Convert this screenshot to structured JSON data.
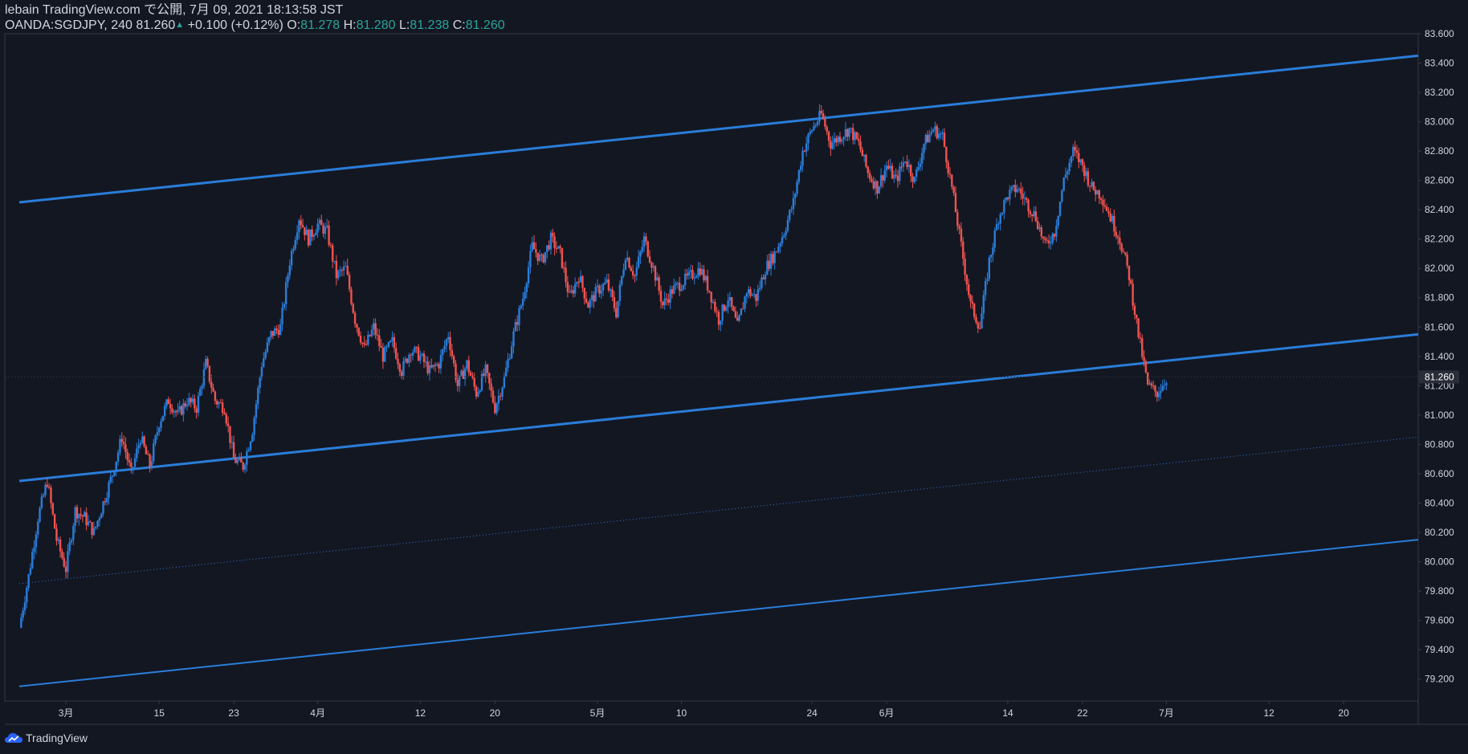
{
  "header": {
    "publish_line": "lebain TradingView.com で公開, 7月 09, 2021 18:13:58 JST",
    "symbol_info": "OANDA:SGDJPY, 240",
    "last": "81.260",
    "change": "+0.100 (+0.12%)",
    "o_label": "O:",
    "o_value": "81.278",
    "h_label": "H:",
    "h_value": "81.280",
    "l_label": "L:",
    "l_value": "81.238",
    "c_label": "C:",
    "c_value": "81.260"
  },
  "footer": {
    "brand": "TradingView"
  },
  "colors": {
    "background": "#131722",
    "bull": "#2a7dd9",
    "bear": "#ef5350",
    "channel": "#2a7dd9",
    "axis_text": "#d1d4dc",
    "price_tag_bg": "#2a2e39"
  },
  "icons": {
    "brand_logo": "tradingview-cloud-icon"
  },
  "chart_data": {
    "type": "candlestick",
    "symbol": "OANDA:SGDJPY",
    "interval": "240",
    "ylim": [
      79.05,
      83.6
    ],
    "y_ticks": [
      "83.600",
      "83.400",
      "83.200",
      "83.000",
      "82.800",
      "82.600",
      "82.400",
      "82.200",
      "82.000",
      "81.800",
      "81.600",
      "81.400",
      "81.200",
      "81.000",
      "80.800",
      "80.600",
      "80.400",
      "80.200",
      "80.000",
      "79.800",
      "79.600",
      "79.400",
      "79.200"
    ],
    "current_price": "81.260",
    "x_ticks": [
      {
        "label": "3月",
        "day": 5
      },
      {
        "label": "15",
        "day": 15
      },
      {
        "label": "23",
        "day": 23
      },
      {
        "label": "4月",
        "day": 32
      },
      {
        "label": "12",
        "day": 43
      },
      {
        "label": "20",
        "day": 51
      },
      {
        "label": "5月",
        "day": 62
      },
      {
        "label": "10",
        "day": 71
      },
      {
        "label": "24",
        "day": 85
      },
      {
        "label": "6月",
        "day": 93
      },
      {
        "label": "14",
        "day": 106
      },
      {
        "label": "22",
        "day": 114
      },
      {
        "label": "7月",
        "day": 123
      },
      {
        "label": "12",
        "day": 134
      },
      {
        "label": "20",
        "day": 142
      }
    ],
    "x_range_days": [
      0,
      150
    ],
    "price_path": [
      [
        0,
        79.55
      ],
      [
        1,
        79.9
      ],
      [
        2,
        80.3
      ],
      [
        3,
        80.55
      ],
      [
        4,
        80.15
      ],
      [
        5,
        79.95
      ],
      [
        6,
        80.35
      ],
      [
        7,
        80.3
      ],
      [
        8,
        80.2
      ],
      [
        9,
        80.4
      ],
      [
        10,
        80.6
      ],
      [
        11,
        80.85
      ],
      [
        12,
        80.6
      ],
      [
        13,
        80.85
      ],
      [
        14,
        80.65
      ],
      [
        15,
        80.95
      ],
      [
        16,
        81.1
      ],
      [
        17,
        81.0
      ],
      [
        18,
        81.1
      ],
      [
        19,
        81.05
      ],
      [
        20,
        81.35
      ],
      [
        21,
        81.1
      ],
      [
        22,
        81.05
      ],
      [
        23,
        80.7
      ],
      [
        24,
        80.65
      ],
      [
        25,
        80.9
      ],
      [
        26,
        81.35
      ],
      [
        27,
        81.55
      ],
      [
        28,
        81.6
      ],
      [
        29,
        82.05
      ],
      [
        30,
        82.35
      ],
      [
        31,
        82.2
      ],
      [
        32,
        82.3
      ],
      [
        33,
        82.25
      ],
      [
        34,
        81.95
      ],
      [
        35,
        82.0
      ],
      [
        36,
        81.65
      ],
      [
        37,
        81.45
      ],
      [
        38,
        81.6
      ],
      [
        39,
        81.4
      ],
      [
        40,
        81.5
      ],
      [
        41,
        81.3
      ],
      [
        42,
        81.45
      ],
      [
        43,
        81.4
      ],
      [
        44,
        81.3
      ],
      [
        45,
        81.35
      ],
      [
        46,
        81.55
      ],
      [
        47,
        81.2
      ],
      [
        48,
        81.35
      ],
      [
        49,
        81.15
      ],
      [
        50,
        81.3
      ],
      [
        51,
        81.05
      ],
      [
        52,
        81.25
      ],
      [
        53,
        81.55
      ],
      [
        54,
        81.8
      ],
      [
        55,
        82.15
      ],
      [
        56,
        82.05
      ],
      [
        57,
        82.2
      ],
      [
        58,
        82.1
      ],
      [
        59,
        81.8
      ],
      [
        60,
        81.95
      ],
      [
        61,
        81.75
      ],
      [
        62,
        81.85
      ],
      [
        63,
        81.9
      ],
      [
        64,
        81.7
      ],
      [
        65,
        82.1
      ],
      [
        66,
        81.95
      ],
      [
        67,
        82.2
      ],
      [
        68,
        82.0
      ],
      [
        69,
        81.75
      ],
      [
        70,
        81.85
      ],
      [
        71,
        81.9
      ],
      [
        72,
        81.95
      ],
      [
        73,
        82.0
      ],
      [
        74,
        81.85
      ],
      [
        75,
        81.65
      ],
      [
        76,
        81.8
      ],
      [
        77,
        81.6
      ],
      [
        78,
        81.85
      ],
      [
        79,
        81.8
      ],
      [
        80,
        82.0
      ],
      [
        81,
        82.1
      ],
      [
        82,
        82.25
      ],
      [
        83,
        82.45
      ],
      [
        84,
        82.8
      ],
      [
        85,
        82.95
      ],
      [
        86,
        83.05
      ],
      [
        87,
        82.85
      ],
      [
        88,
        82.9
      ],
      [
        89,
        82.95
      ],
      [
        90,
        82.85
      ],
      [
        91,
        82.65
      ],
      [
        92,
        82.55
      ],
      [
        93,
        82.7
      ],
      [
        94,
        82.6
      ],
      [
        95,
        82.75
      ],
      [
        96,
        82.6
      ],
      [
        97,
        82.85
      ],
      [
        98,
        82.95
      ],
      [
        99,
        82.9
      ],
      [
        100,
        82.55
      ],
      [
        101,
        82.15
      ],
      [
        102,
        81.75
      ],
      [
        103,
        81.6
      ],
      [
        104,
        82.05
      ],
      [
        105,
        82.35
      ],
      [
        106,
        82.5
      ],
      [
        107,
        82.55
      ],
      [
        108,
        82.45
      ],
      [
        109,
        82.35
      ],
      [
        110,
        82.15
      ],
      [
        111,
        82.25
      ],
      [
        112,
        82.6
      ],
      [
        113,
        82.8
      ],
      [
        114,
        82.7
      ],
      [
        115,
        82.55
      ],
      [
        116,
        82.5
      ],
      [
        117,
        82.35
      ],
      [
        118,
        82.2
      ],
      [
        119,
        81.95
      ],
      [
        120,
        81.55
      ],
      [
        121,
        81.2
      ],
      [
        122,
        81.15
      ],
      [
        123,
        81.25
      ]
    ],
    "channel_lines": [
      {
        "name": "upper",
        "from": [
          0,
          82.45
        ],
        "to": [
          150,
          83.45
        ],
        "style": "solid",
        "width": 3
      },
      {
        "name": "middle",
        "from": [
          0,
          80.55
        ],
        "to": [
          150,
          81.55
        ],
        "style": "solid",
        "width": 3
      },
      {
        "name": "lower-dotted",
        "from": [
          0,
          79.85
        ],
        "to": [
          150,
          80.85
        ],
        "style": "dotted",
        "width": 1
      },
      {
        "name": "lower",
        "from": [
          0,
          79.15
        ],
        "to": [
          150,
          80.15
        ],
        "style": "solid",
        "width": 2
      }
    ]
  }
}
